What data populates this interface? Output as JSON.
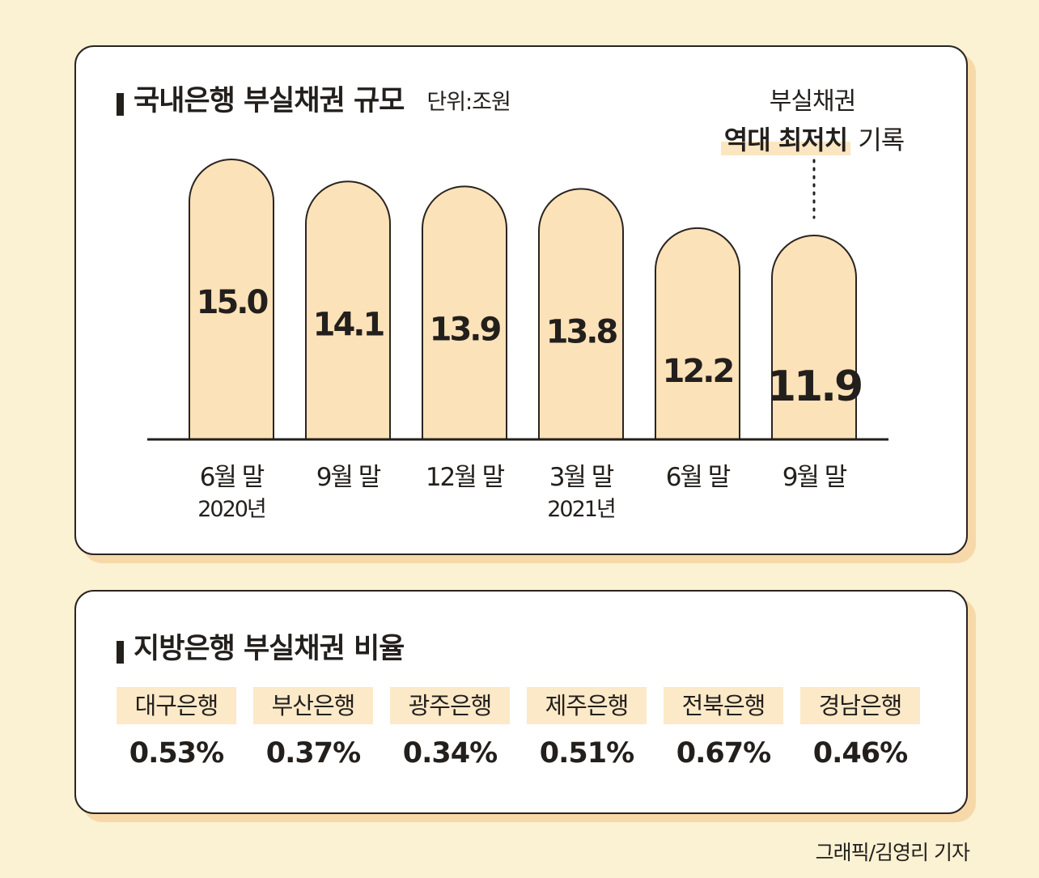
{
  "colors": {
    "bar_fill": "#fbe2b8",
    "accent": "#f7d9a9",
    "background": "#fbf1d3"
  },
  "chart_data": {
    "type": "bar",
    "title": "국내은행 부실채권 규모",
    "unit_label": "단위:조원",
    "categories": [
      "6월 말",
      "9월 말",
      "12월 말",
      "3월 말",
      "6월 말",
      "9월 말"
    ],
    "year_labels": [
      "2020년",
      "",
      "",
      "2021년",
      "",
      ""
    ],
    "values": [
      15.0,
      14.1,
      13.9,
      13.8,
      12.2,
      11.9
    ],
    "value_labels": [
      "15.0",
      "14.1",
      "13.9",
      "13.8",
      "12.2",
      "11.9"
    ],
    "annotation": {
      "line1": "부실채권",
      "highlight": "역대 최저치",
      "rest": "기록"
    }
  },
  "regional": {
    "title": "지방은행 부실채권 비율",
    "banks": [
      {
        "name": "대구은행",
        "value": "0.53%"
      },
      {
        "name": "부산은행",
        "value": "0.37%"
      },
      {
        "name": "광주은행",
        "value": "0.34%"
      },
      {
        "name": "제주은행",
        "value": "0.51%"
      },
      {
        "name": "전북은행",
        "value": "0.67%"
      },
      {
        "name": "경남은행",
        "value": "0.46%"
      }
    ]
  },
  "credit": "그래픽/김영리 기자"
}
